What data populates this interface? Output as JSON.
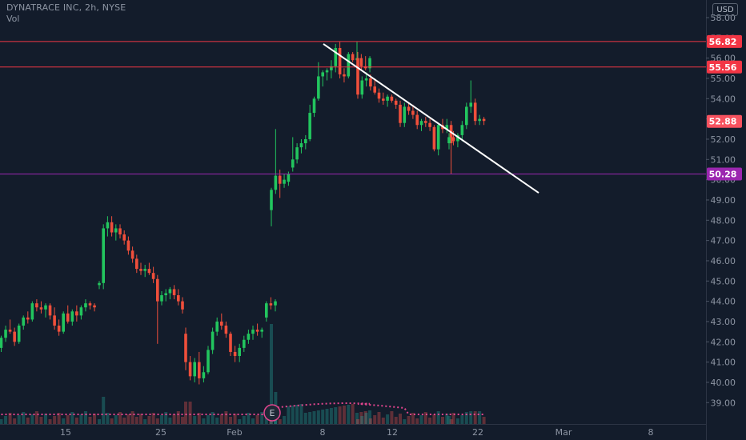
{
  "header": {
    "title": "DYNATRACE INC, 2h, NYSE",
    "volume_label": "Vol",
    "currency_button": "USD"
  },
  "chart_data": {
    "type": "candlestick",
    "symbol": "DYNATRACE INC",
    "interval": "2h",
    "exchange": "NYSE",
    "currency": "USD",
    "price_axis": {
      "ticks": [
        "58.00",
        "57.00",
        "56.00",
        "55.00",
        "54.00",
        "53.00",
        "52.00",
        "51.00",
        "50.00",
        "49.00",
        "48.00",
        "47.00",
        "46.00",
        "45.00",
        "44.00",
        "43.00",
        "42.00",
        "41.00",
        "40.00",
        "39.00"
      ],
      "range": [
        38.4,
        58.5
      ]
    },
    "time_axis": {
      "labels": [
        "15",
        "25",
        "Feb",
        "8",
        "12",
        "22",
        "Mar",
        "8"
      ]
    },
    "price_levels": [
      {
        "label": "56.82",
        "value": 56.82,
        "color": "#f23645"
      },
      {
        "label": "55.56",
        "value": 55.56,
        "color": "#f23645"
      },
      {
        "label": "52.88",
        "value": 52.88,
        "color": "#f7525f"
      },
      {
        "label": "50.28",
        "value": 50.28,
        "color": "#9c27b0"
      }
    ],
    "trendline": {
      "from": [
        56.7,
        "8"
      ],
      "to": [
        49.35,
        "Mar"
      ],
      "color": "#ffffff"
    },
    "earnings_marker": "E",
    "candles": [
      [
        41.7,
        42.3,
        41.5,
        42.2
      ],
      [
        42.2,
        42.8,
        42.0,
        42.6
      ],
      [
        42.6,
        43.1,
        42.4,
        42.5
      ],
      [
        42.5,
        42.7,
        41.8,
        42.0
      ],
      [
        42.0,
        42.9,
        41.9,
        42.8
      ],
      [
        42.8,
        43.3,
        42.6,
        43.2
      ],
      [
        43.2,
        43.5,
        42.9,
        43.1
      ],
      [
        43.1,
        44.0,
        43.0,
        43.9
      ],
      [
        43.9,
        44.1,
        43.5,
        43.7
      ],
      [
        43.7,
        44.0,
        43.4,
        43.6
      ],
      [
        43.6,
        43.9,
        43.2,
        43.8
      ],
      [
        43.8,
        43.9,
        43.1,
        43.3
      ],
      [
        43.3,
        43.7,
        42.6,
        42.8
      ],
      [
        42.8,
        43.1,
        42.3,
        42.5
      ],
      [
        42.5,
        43.5,
        42.4,
        43.4
      ],
      [
        43.4,
        43.8,
        42.9,
        43.0
      ],
      [
        43.0,
        43.6,
        42.8,
        43.5
      ],
      [
        43.5,
        43.8,
        43.0,
        43.3
      ],
      [
        43.3,
        43.8,
        43.1,
        43.7
      ],
      [
        43.7,
        44.1,
        43.5,
        43.9
      ],
      [
        43.9,
        44.0,
        43.6,
        43.8
      ],
      [
        43.8,
        43.9,
        43.5,
        43.7
      ],
      [
        44.8,
        45.0,
        44.6,
        44.9
      ],
      [
        44.9,
        47.8,
        44.6,
        47.6
      ],
      [
        47.6,
        48.2,
        47.2,
        47.9
      ],
      [
        47.9,
        48.2,
        47.2,
        47.4
      ],
      [
        47.4,
        47.8,
        47.0,
        47.6
      ],
      [
        47.6,
        47.8,
        47.1,
        47.3
      ],
      [
        47.3,
        47.5,
        46.8,
        47.0
      ],
      [
        47.0,
        47.2,
        46.3,
        46.5
      ],
      [
        46.5,
        46.7,
        45.9,
        46.1
      ],
      [
        46.1,
        46.3,
        45.4,
        45.6
      ],
      [
        45.6,
        45.9,
        45.3,
        45.5
      ],
      [
        45.5,
        45.8,
        45.2,
        45.6
      ],
      [
        45.6,
        45.9,
        45.3,
        45.4
      ],
      [
        45.4,
        45.7,
        44.9,
        45.1
      ],
      [
        45.1,
        45.3,
        41.9,
        44.0
      ],
      [
        44.0,
        44.5,
        43.8,
        44.3
      ],
      [
        44.3,
        44.6,
        44.0,
        44.4
      ],
      [
        44.4,
        44.7,
        44.1,
        44.6
      ],
      [
        44.6,
        44.8,
        44.1,
        44.3
      ],
      [
        44.3,
        44.6,
        43.8,
        44.0
      ],
      [
        44.0,
        44.2,
        43.4,
        43.6
      ],
      [
        42.4,
        42.7,
        40.6,
        41.0
      ],
      [
        41.0,
        41.3,
        40.1,
        40.3
      ],
      [
        40.3,
        41.2,
        40.0,
        41.0
      ],
      [
        41.0,
        41.5,
        39.9,
        40.2
      ],
      [
        40.2,
        40.8,
        40.0,
        40.5
      ],
      [
        40.5,
        41.8,
        40.4,
        41.6
      ],
      [
        41.6,
        42.7,
        41.4,
        42.5
      ],
      [
        42.5,
        43.2,
        42.3,
        43.0
      ],
      [
        43.0,
        43.4,
        42.6,
        42.8
      ],
      [
        42.8,
        43.0,
        42.2,
        42.4
      ],
      [
        42.4,
        42.5,
        41.3,
        41.5
      ],
      [
        41.5,
        41.8,
        41.0,
        41.3
      ],
      [
        41.3,
        41.9,
        41.0,
        41.7
      ],
      [
        41.7,
        42.3,
        41.5,
        42.1
      ],
      [
        42.1,
        42.6,
        41.9,
        42.4
      ],
      [
        42.4,
        42.8,
        42.1,
        42.6
      ],
      [
        42.6,
        42.9,
        42.3,
        42.5
      ],
      [
        42.5,
        42.7,
        42.2,
        42.6
      ],
      [
        43.2,
        44.0,
        43.0,
        43.9
      ],
      [
        43.9,
        44.2,
        43.6,
        43.8
      ],
      [
        43.8,
        44.1,
        43.5,
        44.0
      ],
      [
        48.5,
        49.6,
        47.7,
        49.5
      ],
      [
        49.5,
        52.5,
        49.3,
        50.2
      ],
      [
        50.2,
        50.5,
        49.1,
        49.8
      ],
      [
        49.8,
        50.3,
        49.6,
        50.0
      ],
      [
        49.9,
        50.4,
        49.7,
        50.3
      ],
      [
        50.6,
        52.1,
        50.4,
        51.0
      ],
      [
        51.0,
        51.8,
        50.8,
        51.6
      ],
      [
        51.6,
        52.0,
        51.3,
        51.8
      ],
      [
        51.8,
        52.2,
        51.5,
        52.0
      ],
      [
        52.0,
        53.7,
        51.9,
        53.3
      ],
      [
        53.3,
        54.1,
        53.1,
        54.0
      ],
      [
        54.0,
        55.8,
        53.9,
        55.1
      ],
      [
        55.1,
        55.4,
        54.6,
        55.3
      ],
      [
        55.3,
        55.5,
        54.9,
        55.4
      ],
      [
        55.4,
        55.9,
        55.0,
        55.6
      ],
      [
        55.6,
        56.7,
        55.3,
        56.5
      ],
      [
        56.5,
        56.8,
        55.0,
        55.2
      ],
      [
        55.2,
        55.5,
        54.8,
        55.1
      ],
      [
        55.1,
        56.3,
        55.0,
        56.2
      ],
      [
        56.2,
        56.3,
        55.8,
        55.9
      ],
      [
        55.9,
        56.8,
        55.7,
        56.0
      ],
      [
        56.0,
        56.2,
        55.4,
        55.6
      ],
      [
        55.6,
        56.1,
        55.4,
        55.5
      ],
      [
        55.5,
        56.1,
        55.3,
        56.0
      ],
      [
        56.0,
        56.3,
        54.0,
        54.2
      ],
      [
        54.2,
        55.1,
        54.0,
        54.9
      ],
      [
        54.9,
        55.3,
        54.6,
        55.0
      ],
      [
        55.0,
        55.2,
        54.4,
        54.6
      ],
      [
        54.6,
        55.0,
        54.2,
        54.3
      ],
      [
        54.3,
        54.5,
        53.8,
        54.0
      ],
      [
        54.0,
        54.3,
        53.7,
        53.9
      ],
      [
        53.9,
        54.2,
        53.6,
        54.1
      ],
      [
        54.1,
        54.2,
        53.8,
        53.9
      ],
      [
        53.9,
        54.0,
        53.5,
        53.7
      ],
      [
        53.7,
        53.9,
        52.6,
        52.8
      ],
      [
        52.8,
        53.8,
        52.6,
        53.6
      ],
      [
        53.6,
        53.8,
        53.2,
        53.4
      ],
      [
        53.4,
        53.7,
        53.0,
        53.2
      ],
      [
        53.2,
        53.4,
        52.5,
        52.7
      ],
      [
        52.7,
        53.0,
        52.4,
        52.9
      ],
      [
        52.9,
        53.1,
        52.6,
        52.8
      ],
      [
        52.8,
        53.0,
        52.4,
        52.6
      ],
      [
        52.6,
        52.7,
        51.4,
        51.5
      ],
      [
        51.5,
        52.8,
        51.2,
        52.7
      ],
      [
        52.7,
        53.0,
        52.3,
        52.5
      ],
      [
        52.5,
        53.0,
        52.3,
        52.7
      ],
      [
        52.7,
        52.9,
        50.3,
        51.8
      ],
      [
        51.8,
        52.3,
        51.5,
        52.1
      ],
      [
        52.1,
        52.4,
        51.7,
        51.9
      ],
      [
        51.9,
        52.3,
        51.6,
        52.2
      ],
      [
        52.2,
        52.9,
        51.9,
        52.7
      ],
      [
        52.7,
        53.8,
        52.5,
        53.6
      ],
      [
        53.6,
        54.9,
        53.3,
        53.8
      ],
      [
        53.8,
        54.0,
        52.7,
        52.9
      ],
      [
        52.9,
        53.2,
        52.7,
        53.0
      ],
      [
        53.0,
        53.1,
        52.7,
        52.9
      ]
    ]
  }
}
